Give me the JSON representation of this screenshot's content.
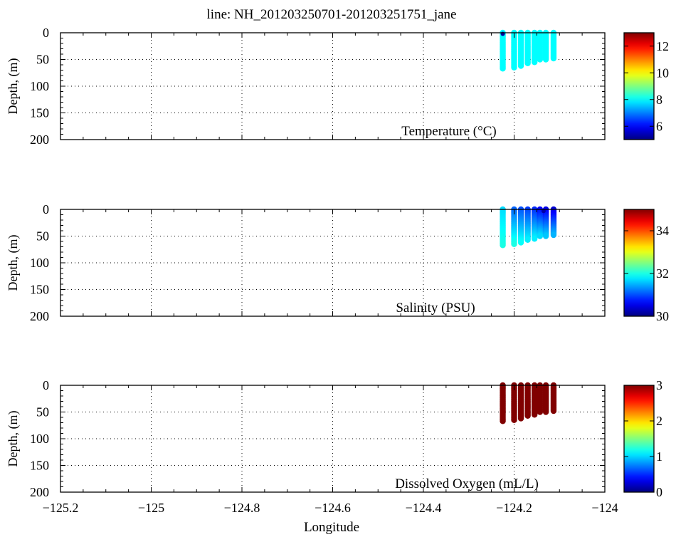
{
  "figure": {
    "title": "line: NH_201203250701-201203251751_jane",
    "xlabel": "Longitude",
    "x_tick_labels": [
      "−125.2",
      "−125",
      "−124.8",
      "−124.6",
      "−124.4",
      "−124.2",
      "−124"
    ]
  },
  "chart_data": [
    {
      "type": "scatter",
      "panel": "temperature",
      "title": "line: NH_201203250701-201203251751_jane",
      "annotation": "Temperature (°C)",
      "xlabel": "Longitude",
      "ylabel": "Depth, (m)",
      "xlim": [
        -125.2,
        -124.0
      ],
      "ylim": [
        200,
        0
      ],
      "x_ticks": [
        -125.2,
        -125.0,
        -124.8,
        -124.6,
        -124.4,
        -124.2,
        -124.0
      ],
      "y_ticks": [
        0,
        50,
        100,
        150,
        200
      ],
      "y_tick_labels": [
        "0",
        "50",
        "100",
        "150",
        "200"
      ],
      "grid": true,
      "colorbar": {
        "range": [
          5,
          13
        ],
        "ticks": [
          6,
          8,
          10,
          12
        ],
        "tick_labels": [
          "6",
          "8",
          "10",
          "12"
        ],
        "colormap": "jet"
      },
      "profiles": [
        {
          "lon": -124.225,
          "depth_max": 67,
          "value_top": 8.0,
          "value_bottom": 8.0
        },
        {
          "lon": -124.2,
          "depth_max": 65,
          "value_top": 8.0,
          "value_bottom": 8.0
        },
        {
          "lon": -124.185,
          "depth_max": 62,
          "value_top": 8.0,
          "value_bottom": 8.0
        },
        {
          "lon": -124.17,
          "depth_max": 57,
          "value_top": 8.0,
          "value_bottom": 8.0
        },
        {
          "lon": -124.155,
          "depth_max": 55,
          "value_top": 8.0,
          "value_bottom": 8.0
        },
        {
          "lon": -124.143,
          "depth_max": 50,
          "value_top": 8.0,
          "value_bottom": 8.0
        },
        {
          "lon": -124.13,
          "depth_max": 50,
          "value_top": 8.0,
          "value_bottom": 8.0
        },
        {
          "lon": -124.113,
          "depth_max": 48,
          "value_top": 8.0,
          "value_bottom": 8.0
        }
      ],
      "points": [
        {
          "lon": -124.225,
          "depth": 2,
          "value": 5.3
        }
      ]
    },
    {
      "type": "scatter",
      "panel": "salinity",
      "annotation": "Salinity (PSU)",
      "xlabel": "Longitude",
      "ylabel": "Depth, (m)",
      "xlim": [
        -125.2,
        -124.0
      ],
      "ylim": [
        200,
        0
      ],
      "x_ticks": [
        -125.2,
        -125.0,
        -124.8,
        -124.6,
        -124.4,
        -124.2,
        -124.0
      ],
      "y_ticks": [
        0,
        50,
        100,
        150,
        200
      ],
      "y_tick_labels": [
        "0",
        "50",
        "100",
        "150",
        "200"
      ],
      "grid": true,
      "colorbar": {
        "range": [
          30,
          35
        ],
        "ticks": [
          30,
          32,
          34
        ],
        "tick_labels": [
          "30",
          "32",
          "34"
        ],
        "colormap": "jet"
      },
      "profiles": [
        {
          "lon": -124.225,
          "depth_max": 67,
          "value_top": 31.7,
          "value_bottom": 32.0
        },
        {
          "lon": -124.2,
          "depth_max": 65,
          "value_top": 31.1,
          "value_bottom": 32.0
        },
        {
          "lon": -124.185,
          "depth_max": 62,
          "value_top": 31.0,
          "value_bottom": 31.9
        },
        {
          "lon": -124.17,
          "depth_max": 57,
          "value_top": 30.9,
          "value_bottom": 31.8
        },
        {
          "lon": -124.155,
          "depth_max": 55,
          "value_top": 30.8,
          "value_bottom": 31.8
        },
        {
          "lon": -124.143,
          "depth_max": 50,
          "value_top": 30.6,
          "value_bottom": 31.7
        },
        {
          "lon": -124.13,
          "depth_max": 50,
          "value_top": 30.5,
          "value_bottom": 31.6
        },
        {
          "lon": -124.113,
          "depth_max": 48,
          "value_top": 30.4,
          "value_bottom": 31.5
        }
      ],
      "points": [
        {
          "lon": -124.135,
          "depth": 3,
          "value": 30.2
        }
      ]
    },
    {
      "type": "scatter",
      "panel": "oxygen",
      "annotation": "Dissolved Oxygen (mL/L)",
      "xlabel": "Longitude",
      "ylabel": "Depth, (m)",
      "xlim": [
        -125.2,
        -124.0
      ],
      "ylim": [
        200,
        0
      ],
      "x_ticks": [
        -125.2,
        -125.0,
        -124.8,
        -124.6,
        -124.4,
        -124.2,
        -124.0
      ],
      "x_tick_labels": [
        "−125.2",
        "−125",
        "−124.8",
        "−124.6",
        "−124.4",
        "−124.2",
        "−124"
      ],
      "y_ticks": [
        0,
        50,
        100,
        150,
        200
      ],
      "y_tick_labels": [
        "0",
        "50",
        "100",
        "150",
        "200"
      ],
      "grid": true,
      "colorbar": {
        "range": [
          0,
          3
        ],
        "ticks": [
          0,
          1,
          2,
          3
        ],
        "tick_labels": [
          "0",
          "1",
          "2",
          "3"
        ],
        "colormap": "jet"
      },
      "profiles": [
        {
          "lon": -124.225,
          "depth_max": 67,
          "value_top": 3.0,
          "value_bottom": 3.0
        },
        {
          "lon": -124.2,
          "depth_max": 65,
          "value_top": 3.0,
          "value_bottom": 3.0
        },
        {
          "lon": -124.185,
          "depth_max": 62,
          "value_top": 3.0,
          "value_bottom": 3.0
        },
        {
          "lon": -124.17,
          "depth_max": 57,
          "value_top": 3.0,
          "value_bottom": 3.0
        },
        {
          "lon": -124.155,
          "depth_max": 55,
          "value_top": 3.0,
          "value_bottom": 3.0
        },
        {
          "lon": -124.143,
          "depth_max": 50,
          "value_top": 3.0,
          "value_bottom": 3.0
        },
        {
          "lon": -124.13,
          "depth_max": 50,
          "value_top": 3.0,
          "value_bottom": 3.0
        },
        {
          "lon": -124.113,
          "depth_max": 48,
          "value_top": 3.0,
          "value_bottom": 3.0
        }
      ],
      "points": []
    }
  ]
}
